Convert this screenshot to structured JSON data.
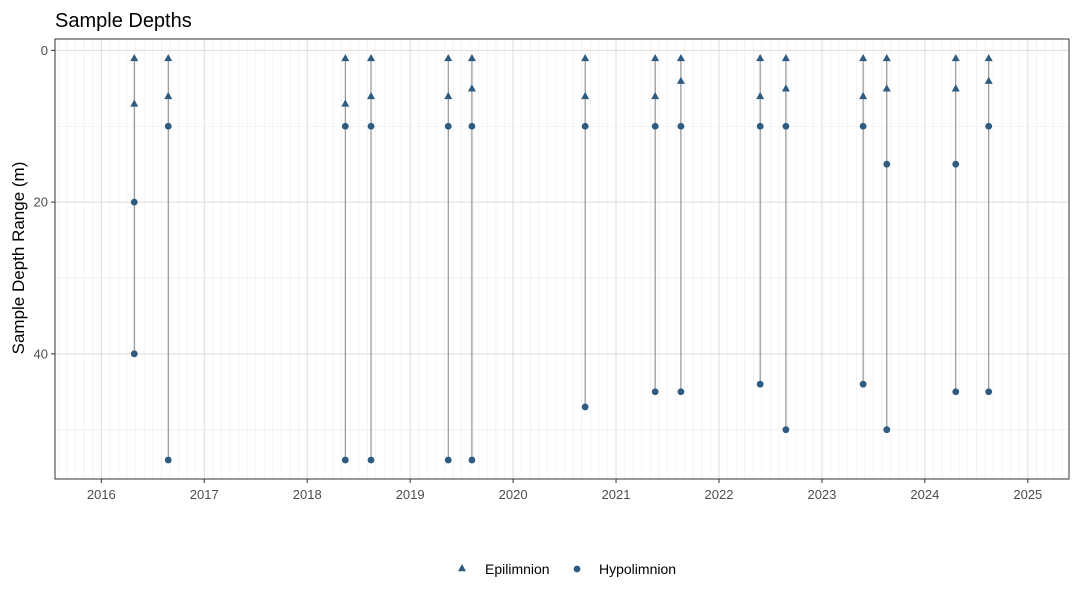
{
  "chart_data": {
    "type": "scatter",
    "title": "Sample Depths",
    "xlabel": "",
    "ylabel": "Sample Depth Range (m)",
    "x_ticks": [
      "2016",
      "2017",
      "2018",
      "2019",
      "2020",
      "2021",
      "2022",
      "2023",
      "2024",
      "2025"
    ],
    "y_ticks": [
      "0",
      "20",
      "40"
    ],
    "xlim": [
      2015.55,
      2025.4
    ],
    "ylim": [
      56.5,
      -1.5
    ],
    "y_reversed": true,
    "grid": true,
    "legend_position": "bottom",
    "color": "#2e5b7f",
    "segment_color": "#808080",
    "series": [
      {
        "name": "Epilimnion",
        "marker": "triangle",
        "points": [
          {
            "x": 2016.32,
            "y": 1
          },
          {
            "x": 2016.32,
            "y": 7
          },
          {
            "x": 2016.65,
            "y": 1
          },
          {
            "x": 2016.65,
            "y": 6
          },
          {
            "x": 2018.37,
            "y": 1
          },
          {
            "x": 2018.37,
            "y": 7
          },
          {
            "x": 2018.62,
            "y": 1
          },
          {
            "x": 2018.62,
            "y": 6
          },
          {
            "x": 2019.37,
            "y": 1
          },
          {
            "x": 2019.37,
            "y": 6
          },
          {
            "x": 2019.6,
            "y": 1
          },
          {
            "x": 2019.6,
            "y": 5
          },
          {
            "x": 2020.7,
            "y": 1
          },
          {
            "x": 2020.7,
            "y": 6
          },
          {
            "x": 2021.38,
            "y": 1
          },
          {
            "x": 2021.38,
            "y": 6
          },
          {
            "x": 2021.63,
            "y": 1
          },
          {
            "x": 2021.63,
            "y": 4
          },
          {
            "x": 2022.4,
            "y": 1
          },
          {
            "x": 2022.4,
            "y": 6
          },
          {
            "x": 2022.65,
            "y": 1
          },
          {
            "x": 2022.65,
            "y": 5
          },
          {
            "x": 2023.4,
            "y": 1
          },
          {
            "x": 2023.4,
            "y": 6
          },
          {
            "x": 2023.63,
            "y": 1
          },
          {
            "x": 2023.63,
            "y": 5
          },
          {
            "x": 2024.3,
            "y": 1
          },
          {
            "x": 2024.3,
            "y": 5
          },
          {
            "x": 2024.62,
            "y": 1
          },
          {
            "x": 2024.62,
            "y": 4
          }
        ]
      },
      {
        "name": "Hypolimnion",
        "marker": "circle",
        "points": [
          {
            "x": 2016.32,
            "y": 20
          },
          {
            "x": 2016.32,
            "y": 40
          },
          {
            "x": 2016.65,
            "y": 10
          },
          {
            "x": 2016.65,
            "y": 54
          },
          {
            "x": 2018.37,
            "y": 10
          },
          {
            "x": 2018.37,
            "y": 54
          },
          {
            "x": 2018.62,
            "y": 10
          },
          {
            "x": 2018.62,
            "y": 54
          },
          {
            "x": 2019.37,
            "y": 10
          },
          {
            "x": 2019.37,
            "y": 54
          },
          {
            "x": 2019.6,
            "y": 10
          },
          {
            "x": 2019.6,
            "y": 54
          },
          {
            "x": 2020.7,
            "y": 10
          },
          {
            "x": 2020.7,
            "y": 47
          },
          {
            "x": 2021.38,
            "y": 10
          },
          {
            "x": 2021.38,
            "y": 45
          },
          {
            "x": 2021.63,
            "y": 10
          },
          {
            "x": 2021.63,
            "y": 45
          },
          {
            "x": 2022.4,
            "y": 10
          },
          {
            "x": 2022.4,
            "y": 44
          },
          {
            "x": 2022.65,
            "y": 10
          },
          {
            "x": 2022.65,
            "y": 50
          },
          {
            "x": 2023.4,
            "y": 10
          },
          {
            "x": 2023.4,
            "y": 44
          },
          {
            "x": 2023.63,
            "y": 15
          },
          {
            "x": 2023.63,
            "y": 50
          },
          {
            "x": 2024.3,
            "y": 15
          },
          {
            "x": 2024.3,
            "y": 45
          },
          {
            "x": 2024.62,
            "y": 10
          },
          {
            "x": 2024.62,
            "y": 45
          }
        ]
      }
    ],
    "ranges": [
      {
        "x": 2016.32,
        "min": 1,
        "max": 40
      },
      {
        "x": 2016.65,
        "min": 1,
        "max": 54
      },
      {
        "x": 2018.37,
        "min": 1,
        "max": 54
      },
      {
        "x": 2018.62,
        "min": 1,
        "max": 54
      },
      {
        "x": 2019.37,
        "min": 1,
        "max": 54
      },
      {
        "x": 2019.6,
        "min": 1,
        "max": 54
      },
      {
        "x": 2020.7,
        "min": 1,
        "max": 47
      },
      {
        "x": 2021.38,
        "min": 1,
        "max": 45
      },
      {
        "x": 2021.63,
        "min": 1,
        "max": 45
      },
      {
        "x": 2022.4,
        "min": 1,
        "max": 44
      },
      {
        "x": 2022.65,
        "min": 1,
        "max": 50
      },
      {
        "x": 2023.4,
        "min": 1,
        "max": 44
      },
      {
        "x": 2023.63,
        "min": 1,
        "max": 50
      },
      {
        "x": 2024.3,
        "min": 1,
        "max": 45
      },
      {
        "x": 2024.62,
        "min": 1,
        "max": 45
      }
    ]
  }
}
